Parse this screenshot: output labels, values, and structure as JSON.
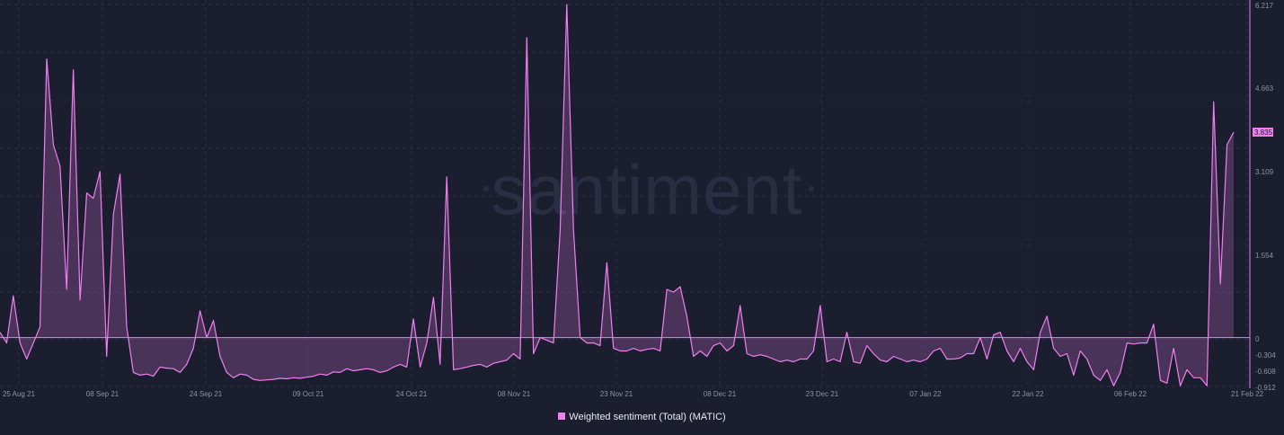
{
  "chart_data": {
    "type": "area",
    "watermark": "santiment",
    "series": [
      {
        "name": "Weighted sentiment (Total) (MATIC)",
        "color": "#f07ff0"
      }
    ],
    "x_tick_labels": [
      "25 Aug 21",
      "08 Sep 21",
      "24 Sep 21",
      "09 Oct 21",
      "24 Oct 21",
      "08 Nov 21",
      "23 Nov 21",
      "08 Dec 21",
      "23 Dec 21",
      "07 Jan 22",
      "22 Jan 22",
      "06 Feb 22",
      "21 Feb 22"
    ],
    "y_tick_labels": [
      "6.217",
      "4.663",
      "3.109",
      "1.554",
      "0",
      "-0.304",
      "-0.608",
      "-0.912"
    ],
    "ylim": [
      -0.912,
      6.217
    ],
    "last_value_label": "3.835",
    "grid": true,
    "legend_position": "bottom-center",
    "values": [
      0.1,
      -0.1,
      0.78,
      -0.1,
      -0.4,
      -0.1,
      0.2,
      5.2,
      3.6,
      3.2,
      0.9,
      5.0,
      0.7,
      2.7,
      2.6,
      3.1,
      -0.35,
      2.3,
      3.05,
      0.2,
      -0.65,
      -0.7,
      -0.68,
      -0.72,
      -0.55,
      -0.57,
      -0.58,
      -0.65,
      -0.5,
      -0.2,
      0.5,
      0.0,
      0.32,
      -0.35,
      -0.65,
      -0.75,
      -0.68,
      -0.7,
      -0.78,
      -0.8,
      -0.79,
      -0.78,
      -0.76,
      -0.77,
      -0.75,
      -0.76,
      -0.74,
      -0.72,
      -0.68,
      -0.7,
      -0.64,
      -0.65,
      -0.58,
      -0.62,
      -0.6,
      -0.58,
      -0.6,
      -0.65,
      -0.62,
      -0.55,
      -0.5,
      -0.55,
      0.35,
      -0.55,
      -0.1,
      0.75,
      -0.5,
      3.0,
      -0.6,
      -0.58,
      -0.55,
      -0.52,
      -0.5,
      -0.55,
      -0.48,
      -0.45,
      -0.42,
      -0.3,
      -0.4,
      5.6,
      -0.3,
      0.0,
      -0.05,
      -0.1,
      2.0,
      6.217,
      2.0,
      0.0,
      -0.1,
      -0.1,
      -0.15,
      1.4,
      -0.2,
      -0.25,
      -0.25,
      -0.2,
      -0.25,
      -0.22,
      -0.2,
      -0.25,
      0.9,
      0.85,
      0.95,
      0.4,
      -0.35,
      -0.25,
      -0.35,
      -0.15,
      -0.1,
      -0.25,
      -0.15,
      0.6,
      -0.3,
      -0.35,
      -0.32,
      -0.35,
      -0.4,
      -0.45,
      -0.42,
      -0.45,
      -0.4,
      -0.4,
      -0.25,
      0.6,
      -0.45,
      -0.4,
      -0.45,
      0.1,
      -0.45,
      -0.48,
      -0.15,
      -0.3,
      -0.42,
      -0.45,
      -0.35,
      -0.4,
      -0.45,
      -0.42,
      -0.45,
      -0.4,
      -0.25,
      -0.2,
      -0.4,
      -0.4,
      -0.38,
      -0.3,
      -0.3,
      0.0,
      -0.4,
      0.05,
      0.1,
      -0.25,
      -0.45,
      -0.2,
      -0.45,
      -0.6,
      0.1,
      0.4,
      -0.2,
      -0.35,
      -0.3,
      -0.7,
      -0.25,
      -0.4,
      -0.7,
      -0.8,
      -0.6,
      -0.9,
      -0.65,
      -0.1,
      -0.12,
      -0.1,
      -0.1,
      0.25,
      -0.8,
      -0.85,
      -0.2,
      -0.9,
      -0.6,
      -0.75,
      -0.75,
      -0.9,
      4.4,
      1.0,
      3.6,
      3.835
    ]
  }
}
